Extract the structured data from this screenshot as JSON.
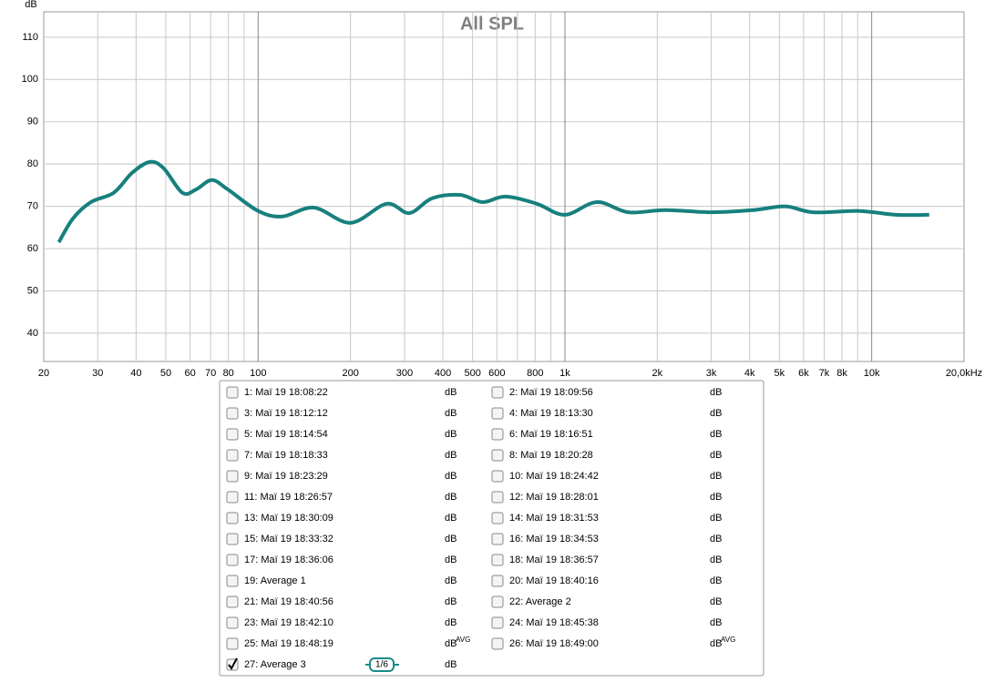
{
  "chart_data": {
    "type": "line",
    "title": "All SPL",
    "y_label": "dB",
    "log_x": true,
    "grid": true,
    "x": [
      22.4,
      24.9,
      28.5,
      33.8,
      38.8,
      44.3,
      49.2,
      56.6,
      62.8,
      70.6,
      79.6,
      100,
      120,
      152,
      200,
      262,
      311,
      369,
      455,
      539,
      640,
      810,
      1000,
      1270,
      1610,
      2120,
      3010,
      4100,
      5230,
      6440,
      9110,
      12000,
      15400
    ],
    "series": [
      {
        "color": "#17807e",
        "values": [
          61.5,
          67.1,
          71,
          73.2,
          77.9,
          80.5,
          79,
          73.2,
          74,
          76.2,
          74,
          68.9,
          67.6,
          69.7,
          66.1,
          70.6,
          68.4,
          71.9,
          72.7,
          71,
          72.3,
          70.6,
          68,
          71,
          68.6,
          69.1,
          68.6,
          69.1,
          70,
          68.6,
          68.9,
          68,
          68
        ]
      }
    ],
    "xlim": [
      20,
      20000
    ],
    "ylim": [
      33.3,
      116
    ],
    "yticks": [
      40,
      50,
      60,
      70,
      80,
      90,
      100,
      110
    ],
    "xticks": [
      20,
      30,
      40,
      50,
      60,
      70,
      80,
      100,
      200,
      300,
      400,
      500,
      600,
      800,
      {
        "value": 1000,
        "label": "1k"
      },
      {
        "value": 2000,
        "label": "2k"
      },
      {
        "value": 3000,
        "label": "3k"
      },
      {
        "value": 4000,
        "label": "4k"
      },
      {
        "value": 5000,
        "label": "5k"
      },
      {
        "value": 6000,
        "label": "6k"
      },
      {
        "value": 7000,
        "label": "7k"
      },
      {
        "value": 8000,
        "label": "8k"
      },
      {
        "value": 10000,
        "label": "10k"
      },
      {
        "value": 20000,
        "label": "20,0kHz"
      }
    ],
    "x_minor_grid": [
      90,
      700,
      900,
      9000
    ]
  },
  "legend": {
    "entries": [
      {
        "label": "1: Maï 19 18:08:22",
        "unit": "dB",
        "color": "#a01818",
        "checked": false
      },
      {
        "label": "2: Maï 19 18:09:56",
        "unit": "dB",
        "color": "#207040",
        "checked": false
      },
      {
        "label": "3: Maï 19 18:12:12",
        "unit": "dB",
        "color": "#4a50d0",
        "checked": false
      },
      {
        "label": "4: Maï 19 18:13:30",
        "unit": "dB",
        "color": "#d07a10",
        "checked": false
      },
      {
        "label": "5: Maï 19 18:14:54",
        "unit": "dB",
        "color": "#30a020",
        "checked": false
      },
      {
        "label": "6: Maï 19 18:16:51",
        "unit": "dB",
        "color": "#2a6ab0",
        "checked": false
      },
      {
        "label": "7: Maï 19 18:18:33",
        "unit": "dB",
        "color": "#a05018",
        "checked": false
      },
      {
        "label": "8: Maï 19 18:20:28",
        "unit": "dB",
        "color": "#2a8a9a",
        "checked": false
      },
      {
        "label": "9: Maï 19 18:23:29",
        "unit": "dB",
        "color": "#9030b0",
        "checked": false
      },
      {
        "label": "10: Maï 19 18:24:42",
        "unit": "dB",
        "color": "#a020c0",
        "checked": false
      },
      {
        "label": "11: Maï 19 18:26:57",
        "unit": "dB",
        "color": "#c01818",
        "checked": false
      },
      {
        "label": "12: Maï 19 18:28:01",
        "unit": "dB",
        "color": "#207040",
        "checked": false
      },
      {
        "label": "13: Maï 19 18:30:09",
        "unit": "dB",
        "color": "#4a5ad0",
        "checked": false
      },
      {
        "label": "14: Maï 19 18:31:53",
        "unit": "dB",
        "color": "#d08a20",
        "checked": false
      },
      {
        "label": "15: Maï 19 18:33:32",
        "unit": "dB",
        "color": "#30a020",
        "checked": false
      },
      {
        "label": "16: Maï 19 18:34:53",
        "unit": "dB",
        "color": "#2a6ab0",
        "checked": false
      },
      {
        "label": "17: Maï 19 18:36:06",
        "unit": "dB",
        "color": "#a05018",
        "checked": false
      },
      {
        "label": "18: Maï 19 18:36:57",
        "unit": "dB",
        "color": "#2a8a9a",
        "checked": false
      },
      {
        "label": "19: Average 1",
        "unit": "dB",
        "color": "#8a2ab0",
        "checked": false
      },
      {
        "label": "20: Maï 19 18:40:16",
        "unit": "dB",
        "color": "#a020c0",
        "checked": false
      },
      {
        "label": "21: Maï 19 18:40:56",
        "unit": "dB",
        "color": "#a01818",
        "checked": false
      },
      {
        "label": "22: Average 2",
        "unit": "dB",
        "color": "#206030",
        "checked": false
      },
      {
        "label": "23: Maï 19 18:42:10",
        "unit": "dB",
        "color": "#4a5ad0",
        "checked": false
      },
      {
        "label": "24: Maï 19 18:45:38",
        "unit": "dB",
        "color": "#d08a20",
        "checked": false
      },
      {
        "label": "25: Maï 19 18:48:19",
        "unit": "dB",
        "sup": "AVG",
        "color": "#2a7ab0",
        "checked": false
      },
      {
        "label": "26: Maï 19 18:49:00",
        "unit": "dB",
        "sup": "AVG",
        "color": "#a05018",
        "checked": false
      },
      {
        "label": "27: Average 3",
        "unit": "dB",
        "badge": "1/6",
        "color": "#1a8a8a",
        "checked": true
      }
    ]
  }
}
